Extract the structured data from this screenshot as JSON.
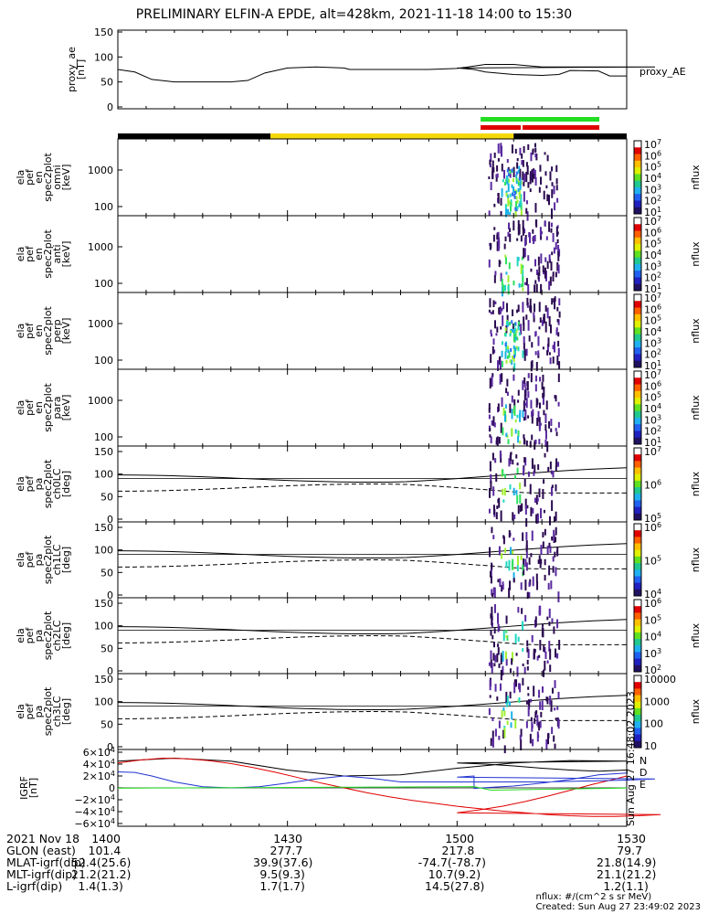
{
  "title": "PRELIMINARY ELFIN-A EPDE, alt=428km, 2021-11-18 14:00 to 15:30",
  "colors": {
    "black": "#000000",
    "yellow": "#f5d80a",
    "green": "#22dd22",
    "red": "#e00000",
    "blue": "#2033d0"
  },
  "status_bars": [
    {
      "color": "black",
      "from": 1400,
      "to": 1427
    },
    {
      "color": "yellow",
      "from": 1427,
      "to": 1510
    },
    {
      "color": "black",
      "from": 1510,
      "to": 1530
    }
  ],
  "science_bars": [
    {
      "color": "green",
      "from": 1504,
      "to": 1525
    },
    {
      "color": "red",
      "from": 1504,
      "to": 1525
    }
  ],
  "chart_data": [
    {
      "type": "line",
      "ylabel": [
        "proxy_ae",
        "[nT]"
      ],
      "series_label": "proxy_AE",
      "ylim": [
        0,
        150
      ],
      "yticks": [
        "0",
        "50",
        "100",
        "150"
      ],
      "x": [
        1400,
        1403,
        1406,
        1410,
        1415,
        1420,
        1423,
        1426,
        1430,
        1435,
        1440,
        1441,
        1450,
        1455,
        1460,
        1465,
        1470,
        1472,
        1475,
        1480,
        1490,
        1495,
        1500,
        1503,
        1505,
        1510,
        1515,
        1518,
        1520,
        1525,
        1527,
        1530
      ],
      "values": [
        75,
        70,
        55,
        50,
        50,
        50,
        53,
        68,
        78,
        80,
        78,
        75,
        75,
        75,
        77,
        85,
        85,
        83,
        80,
        80,
        80,
        80,
        78,
        75,
        70,
        65,
        63,
        65,
        73,
        72,
        62,
        62
      ]
    },
    {
      "type": "heatmap",
      "ylabel": [
        "ela",
        "pef",
        "en",
        "spec2plot",
        "omni",
        "[keV]"
      ],
      "yticks": [
        "100",
        "1000"
      ],
      "zlabel": "nflux",
      "zrange": "10^1 - 10^7",
      "zticks": [
        "1",
        "2",
        "3",
        "4",
        "5",
        "6",
        "7"
      ]
    },
    {
      "type": "heatmap",
      "ylabel": [
        "ela",
        "pef",
        "en",
        "spec2plot",
        "anti",
        "[keV]"
      ],
      "yticks": [
        "100",
        "1000"
      ],
      "zlabel": "nflux",
      "zrange": "10^1 - 10^7",
      "zticks": [
        "1",
        "2",
        "3",
        "4",
        "5",
        "6",
        "7"
      ]
    },
    {
      "type": "heatmap",
      "ylabel": [
        "ela",
        "pef",
        "en",
        "spec2plot",
        "perp",
        "[keV]"
      ],
      "yticks": [
        "100",
        "1000"
      ],
      "zlabel": "nflux",
      "zrange": "10^1 - 10^7",
      "zticks": [
        "1",
        "2",
        "3",
        "4",
        "5",
        "6",
        "7"
      ]
    },
    {
      "type": "heatmap",
      "ylabel": [
        "ela",
        "pef",
        "en",
        "spec2plot",
        "para",
        "[keV]"
      ],
      "yticks": [
        "100",
        "1000"
      ],
      "zlabel": "nflux",
      "zrange": "10^1 - 10^7",
      "zticks": [
        "1",
        "2",
        "3",
        "4",
        "5",
        "6",
        "7"
      ]
    },
    {
      "type": "heatmap",
      "ylabel": [
        "ela",
        "pef",
        "pa",
        "spec2plot",
        "ch0LC",
        "[deg]"
      ],
      "yticks": [
        "0",
        "50",
        "100",
        "150"
      ],
      "zlabel": "nflux",
      "zticks": [
        "10^5",
        "10^6",
        "10^7"
      ]
    },
    {
      "type": "heatmap",
      "ylabel": [
        "ela",
        "pef",
        "pa",
        "spec2plot",
        "ch1LC",
        "[deg]"
      ],
      "yticks": [
        "0",
        "50",
        "100",
        "150"
      ],
      "zlabel": "nflux",
      "zticks": [
        "10^4",
        "10^5",
        "10^6"
      ]
    },
    {
      "type": "heatmap",
      "ylabel": [
        "ela",
        "pef",
        "pa",
        "spec2plot",
        "ch2LC",
        "[deg]"
      ],
      "yticks": [
        "0",
        "50",
        "100",
        "150"
      ],
      "zlabel": "nflux",
      "zticks": [
        "10^2",
        "10^3",
        "10^4",
        "10^5",
        "10^6"
      ]
    },
    {
      "type": "heatmap",
      "ylabel": [
        "ela",
        "pef",
        "pa",
        "spec2plot",
        "ch3LC",
        "[deg]"
      ],
      "yticks": [
        "0",
        "50",
        "100",
        "150"
      ],
      "zlabel": "nflux",
      "zticks": [
        "10",
        "100",
        "1000",
        "10000"
      ]
    },
    {
      "type": "line",
      "ylabel": [
        "IGRF",
        "[nT]"
      ],
      "yticks": [
        "6×10^4",
        "4×10^4",
        "2×10^4",
        "0",
        "−2×10^4",
        "−4×10^4",
        "−6×10^4"
      ],
      "ylim": [
        -60000,
        60000
      ],
      "legend": [
        "N",
        "D",
        "E"
      ],
      "stamp": "Sun Aug 27 16:48:02 2023",
      "series": [
        {
          "name": "N",
          "x": [
            1400,
            1410,
            1420,
            1430,
            1440,
            1450,
            1460,
            1470,
            1480,
            1490,
            1500,
            1505,
            1510,
            1515,
            1520,
            1525,
            1530
          ],
          "values": [
            45000,
            50000,
            45000,
            30000,
            20000,
            22000,
            33000,
            42000,
            46000,
            45000,
            42000,
            40000,
            37000,
            33000,
            30000,
            28000,
            30000
          ]
        },
        {
          "name": "D",
          "x": [
            1400,
            1404,
            1408,
            1412,
            1416,
            1420,
            1424,
            1428,
            1432,
            1436,
            1440,
            1444,
            1448,
            1452,
            1456,
            1460,
            1464,
            1468,
            1472,
            1476,
            1480,
            1484,
            1488,
            1492,
            1496,
            1500,
            1504,
            1508,
            1512,
            1516,
            1520,
            1524,
            1528,
            1530
          ],
          "values": [
            42000,
            47000,
            50000,
            49000,
            46000,
            41000,
            34000,
            26000,
            17000,
            8000,
            0,
            -8000,
            -15000,
            -21000,
            -26000,
            -31000,
            -35000,
            -39000,
            -42000,
            -45000,
            -47000,
            -48000,
            -48000,
            -47000,
            -45000,
            -42000,
            -37000,
            -31000,
            -23000,
            -14000,
            -4000,
            6000,
            15000,
            20000
          ]
        },
        {
          "name": "E",
          "x": [
            1400,
            1403,
            1406,
            1410,
            1415,
            1420,
            1425,
            1430,
            1435,
            1440,
            1445,
            1450,
            1455,
            1460,
            1465,
            1470,
            1475,
            1480,
            1485,
            1490,
            1495,
            1500,
            1503,
            1503.01,
            1506,
            1510,
            1515,
            1520,
            1525,
            1530
          ],
          "values": [
            27000,
            26000,
            20000,
            10000,
            2000,
            0,
            2000,
            8000,
            15000,
            20000,
            16000,
            10000,
            10000,
            10000,
            10000,
            10000,
            10000,
            11000,
            12000,
            13000,
            15000,
            18000,
            20000,
            -1000,
            1000,
            3000,
            8000,
            14000,
            22000,
            25000
          ]
        }
      ]
    }
  ],
  "xaxis": {
    "ticks": [
      "1400",
      "1430",
      "1500",
      "1530"
    ],
    "rows": [
      {
        "label": "2021 Nov 18",
        "vals": [
          "1400",
          "1430",
          "1500",
          "1530"
        ]
      },
      {
        "label": "GLON (east)",
        "vals": [
          "101.4",
          "277.7",
          "217.8",
          "79.7"
        ]
      },
      {
        "label": "MLAT-igrf(dip)",
        "vals": [
          "52.4(25.6)",
          "39.9(37.6)",
          "-74.7(-78.7)",
          "21.8(14.9)"
        ]
      },
      {
        "label": "MLT-igrf(dip)",
        "vals": [
          "21.2(21.2)",
          "9.5(9.3)",
          "10.7(9.2)",
          "21.1(21.2)"
        ]
      },
      {
        "label": "L-igrf(dip)",
        "vals": [
          "1.4(1.3)",
          "1.7(1.7)",
          "14.5(27.8)",
          "1.2(1.1)"
        ]
      }
    ]
  },
  "footer": {
    "units": "nflux: #/(cm^2 s sr MeV)",
    "created": "Created: Sun Aug 27 23:49:02 2023"
  }
}
